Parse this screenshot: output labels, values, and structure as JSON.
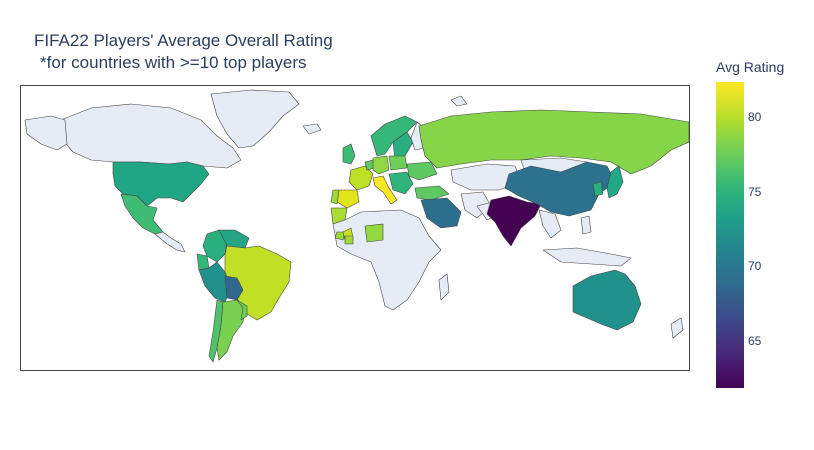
{
  "title": "FIFA22 Players' Average Overall Rating",
  "subtitle": "*for countries with >=10 top players",
  "colorbar": {
    "title": "Avg Rating",
    "ticks": [
      "80",
      "75",
      "70",
      "65"
    ],
    "colors": [
      "#440154",
      "#3e4989",
      "#26828e",
      "#35b779",
      "#b5de2b",
      "#fde725"
    ]
  },
  "map": {
    "type": "choropleth",
    "projection": "equirectangular",
    "default_land_color": "#e5ecf6",
    "border_color": "#444444"
  }
}
